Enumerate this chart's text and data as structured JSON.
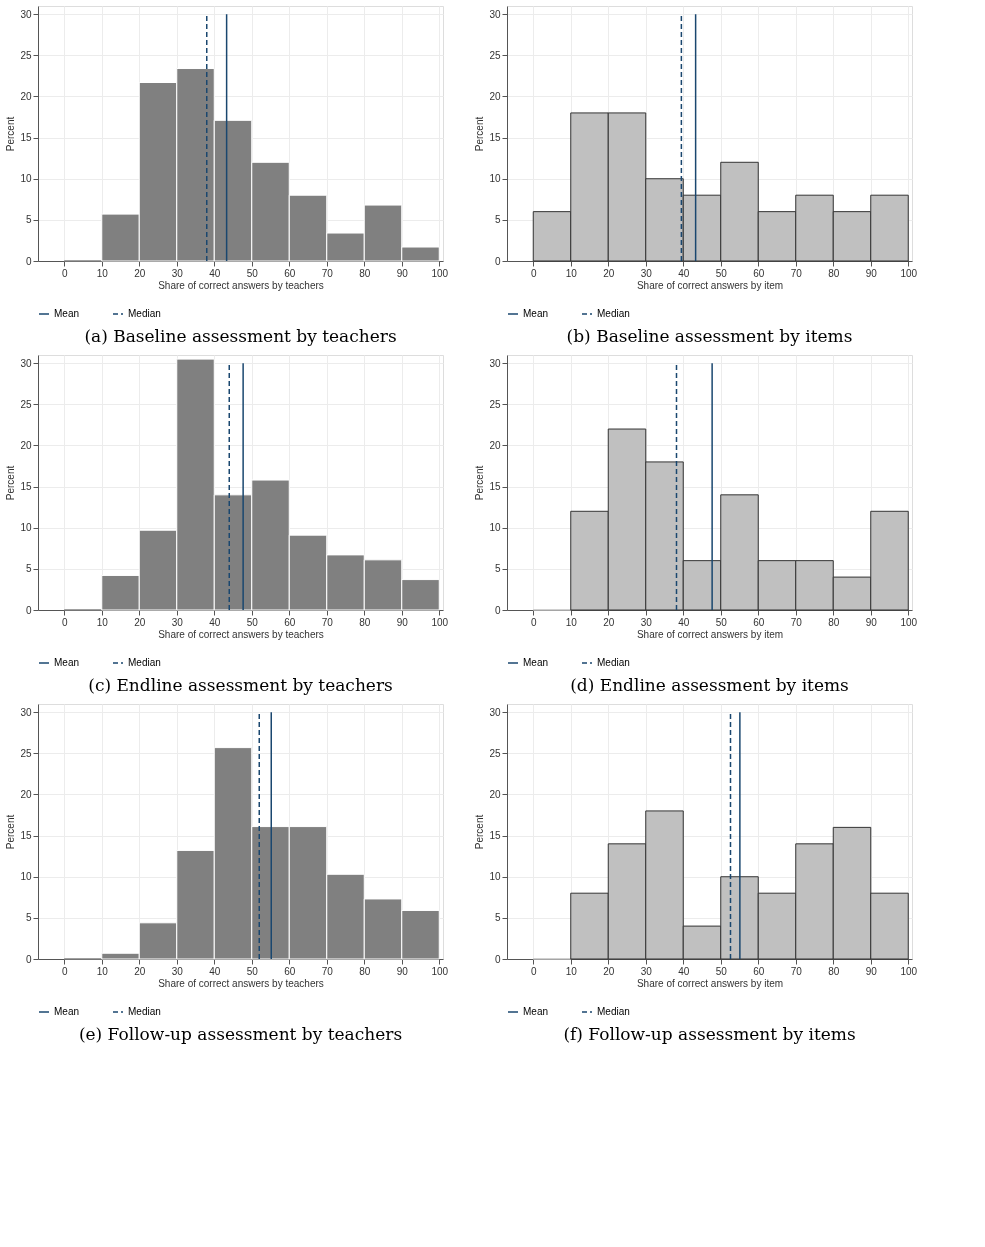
{
  "chart_data": [
    {
      "type": "histogram",
      "title": "(a) Baseline assessment by teachers",
      "xlabel": "Share of correct answers by teachers",
      "ylabel": "Percent",
      "bins": [
        0,
        10,
        20,
        30,
        40,
        50,
        60,
        70,
        80,
        90,
        100
      ],
      "values": [
        0,
        5.7,
        21.7,
        23.4,
        17.1,
        12,
        8,
        3.4,
        6.8,
        1.7
      ],
      "color": "#808080",
      "xlim": [
        -7,
        101
      ],
      "ylim": [
        0,
        31
      ],
      "xticks": [
        0,
        10,
        20,
        30,
        40,
        50,
        60,
        70,
        80,
        90,
        100
      ],
      "yticks": [
        0,
        5,
        10,
        15,
        20,
        25,
        30
      ],
      "grid": true,
      "legend": "bottom",
      "ref_lines": [
        {
          "axis": "x",
          "value": 43.3,
          "label": "Mean",
          "color": "#1a476f",
          "line_style": "solid"
        },
        {
          "axis": "x",
          "value": 38,
          "label": "Median",
          "color": "#1a476f",
          "line_style": "dashed"
        }
      ]
    },
    {
      "type": "histogram",
      "title": "(b) Baseline assessment by items",
      "xlabel": "Share of correct answers by item",
      "ylabel": "Percent",
      "bins": [
        0,
        10,
        20,
        30,
        40,
        50,
        60,
        70,
        80,
        90,
        100
      ],
      "values": [
        6,
        18,
        18,
        10,
        8,
        12,
        6,
        8,
        6,
        8
      ],
      "color": "#c0c0c0",
      "xlim": [
        -7,
        101
      ],
      "ylim": [
        0,
        31
      ],
      "xticks": [
        0,
        10,
        20,
        30,
        40,
        50,
        60,
        70,
        80,
        90,
        100
      ],
      "yticks": [
        0,
        5,
        10,
        15,
        20,
        25,
        30
      ],
      "grid": true,
      "legend": "bottom",
      "ref_lines": [
        {
          "axis": "x",
          "value": 43.3,
          "label": "Mean",
          "color": "#1a476f",
          "line_style": "solid"
        },
        {
          "axis": "x",
          "value": 39.5,
          "label": "Median",
          "color": "#1a476f",
          "line_style": "dashed"
        }
      ]
    },
    {
      "type": "histogram",
      "title": "(c) Endline assessment by teachers",
      "xlabel": "Share of correct answers by teachers",
      "ylabel": "Percent",
      "bins": [
        0,
        10,
        20,
        30,
        40,
        50,
        60,
        70,
        80,
        90,
        100
      ],
      "values": [
        0,
        4.2,
        9.7,
        30.5,
        14,
        15.8,
        9.1,
        6.7,
        6.1,
        3.7
      ],
      "color": "#808080",
      "xlim": [
        -7,
        101
      ],
      "ylim": [
        0,
        31
      ],
      "xticks": [
        0,
        10,
        20,
        30,
        40,
        50,
        60,
        70,
        80,
        90,
        100
      ],
      "yticks": [
        0,
        5,
        10,
        15,
        20,
        25,
        30
      ],
      "grid": true,
      "legend": "bottom",
      "ref_lines": [
        {
          "axis": "x",
          "value": 47.7,
          "label": "Mean",
          "color": "#1a476f",
          "line_style": "solid"
        },
        {
          "axis": "x",
          "value": 44,
          "label": "Median",
          "color": "#1a476f",
          "line_style": "dashed"
        }
      ]
    },
    {
      "type": "histogram",
      "title": "(d) Endline assessment by items",
      "xlabel": "Share of correct answers by item",
      "ylabel": "Percent",
      "bins": [
        0,
        10,
        20,
        30,
        40,
        50,
        60,
        70,
        80,
        90,
        100
      ],
      "values": [
        0,
        12,
        22,
        18,
        6,
        14,
        6,
        6,
        4,
        12
      ],
      "color": "#c0c0c0",
      "xlim": [
        -7,
        101
      ],
      "ylim": [
        0,
        31
      ],
      "xticks": [
        0,
        10,
        20,
        30,
        40,
        50,
        60,
        70,
        80,
        90,
        100
      ],
      "yticks": [
        0,
        5,
        10,
        15,
        20,
        25,
        30
      ],
      "grid": true,
      "legend": "bottom",
      "ref_lines": [
        {
          "axis": "x",
          "value": 47.7,
          "label": "Mean",
          "color": "#1a476f",
          "line_style": "solid"
        },
        {
          "axis": "x",
          "value": 38.2,
          "label": "Median",
          "color": "#1a476f",
          "line_style": "dashed"
        }
      ]
    },
    {
      "type": "histogram",
      "title": "(e) Follow-up assessment by teachers",
      "xlabel": "Share of correct answers by teachers",
      "ylabel": "Percent",
      "bins": [
        0,
        10,
        20,
        30,
        40,
        50,
        60,
        70,
        80,
        90,
        100
      ],
      "values": [
        0,
        0.7,
        4.4,
        13.2,
        25.7,
        16.1,
        16.1,
        10.3,
        7.3,
        5.9
      ],
      "color": "#808080",
      "xlim": [
        -7,
        101
      ],
      "ylim": [
        0,
        31
      ],
      "xticks": [
        0,
        10,
        20,
        30,
        40,
        50,
        60,
        70,
        80,
        90,
        100
      ],
      "yticks": [
        0,
        5,
        10,
        15,
        20,
        25,
        30
      ],
      "grid": true,
      "legend": "bottom",
      "ref_lines": [
        {
          "axis": "x",
          "value": 55.2,
          "label": "Mean",
          "color": "#1a476f",
          "line_style": "solid"
        },
        {
          "axis": "x",
          "value": 52,
          "label": "Median",
          "color": "#1a476f",
          "line_style": "dashed"
        }
      ]
    },
    {
      "type": "histogram",
      "title": "(f) Follow-up assessment by items",
      "xlabel": "Share of correct answers by item",
      "ylabel": "Percent",
      "bins": [
        0,
        10,
        20,
        30,
        40,
        50,
        60,
        70,
        80,
        90,
        100
      ],
      "values": [
        0,
        8,
        14,
        18,
        4,
        10,
        8,
        14,
        16,
        8
      ],
      "color": "#c0c0c0",
      "xlim": [
        -7,
        101
      ],
      "ylim": [
        0,
        31
      ],
      "xticks": [
        0,
        10,
        20,
        30,
        40,
        50,
        60,
        70,
        80,
        90,
        100
      ],
      "yticks": [
        0,
        5,
        10,
        15,
        20,
        25,
        30
      ],
      "grid": true,
      "legend": "bottom",
      "ref_lines": [
        {
          "axis": "x",
          "value": 55.1,
          "label": "Mean",
          "color": "#1a476f",
          "line_style": "solid"
        },
        {
          "axis": "x",
          "value": 52.6,
          "label": "Median",
          "color": "#1a476f",
          "line_style": "dashed"
        }
      ]
    }
  ]
}
